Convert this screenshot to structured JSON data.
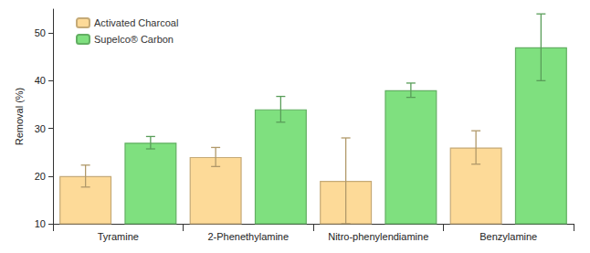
{
  "chart_data": {
    "type": "bar",
    "y_label": "Removal (%)",
    "categories": [
      "Tyramine",
      "2-Phenethylamine",
      "Nitro-phenylendiamine",
      "Benzylamine"
    ],
    "series": [
      {
        "name": "Activated Charcoal",
        "color": "#fdda98",
        "values": [
          20,
          24,
          19,
          26
        ],
        "errors": [
          2.3,
          2,
          9,
          3.5
        ]
      },
      {
        "name": "Supelco® Carbon",
        "color": "#7fe07f",
        "values": [
          27,
          34,
          38,
          47
        ],
        "errors": [
          1.3,
          2.7,
          1.5,
          7
        ]
      }
    ],
    "ylim": [
      10,
      55
    ],
    "yticks": [
      10,
      20,
      30,
      40,
      50
    ],
    "grid": false,
    "legend": "upper left"
  }
}
